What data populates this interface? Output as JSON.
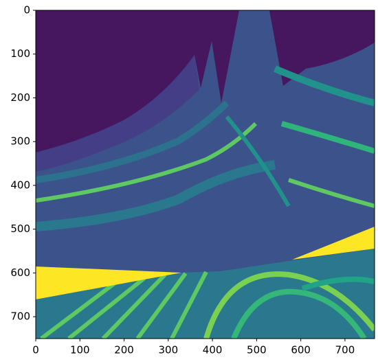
{
  "chart_data": {
    "type": "image",
    "xlim": [
      0,
      767
    ],
    "ylim": [
      750,
      0
    ],
    "xticks": [
      0,
      100,
      200,
      300,
      400,
      500,
      600,
      700
    ],
    "yticks": [
      0,
      100,
      200,
      300,
      400,
      500,
      600,
      700
    ]
  }
}
